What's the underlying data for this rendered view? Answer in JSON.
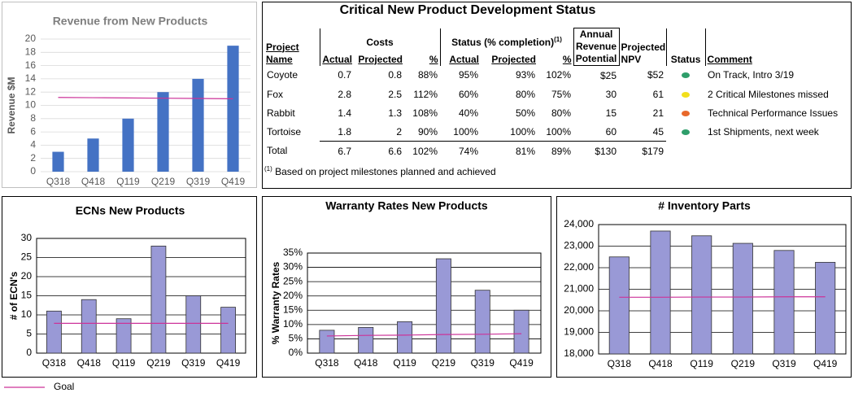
{
  "chart_data": [
    {
      "type": "bar",
      "title": "Revenue from New Products",
      "ylabel": "Revenue $M",
      "categories": [
        "Q318",
        "Q418",
        "Q119",
        "Q219",
        "Q319",
        "Q419"
      ],
      "values": [
        3,
        5,
        8,
        12,
        14,
        19
      ],
      "goal": [
        11.2,
        11.16,
        11.12,
        11.08,
        11.04,
        11.0
      ],
      "color": "#4472c4",
      "ylim": [
        0,
        20
      ],
      "yticks": [
        0,
        2,
        4,
        6,
        8,
        10,
        12,
        14,
        16,
        18,
        20
      ],
      "grid": true,
      "frame": false
    },
    {
      "type": "bar",
      "title": "ECNs New Products",
      "ylabel": "# of ECN's",
      "categories": [
        "Q318",
        "Q418",
        "Q119",
        "Q219",
        "Q319",
        "Q419"
      ],
      "values": [
        11,
        14,
        9,
        28,
        15,
        12
      ],
      "goal": [
        7.8,
        7.8,
        7.8,
        7.8,
        7.8,
        7.8
      ],
      "color": "#9999d6",
      "ylim": [
        0,
        30
      ],
      "yticks": [
        0,
        5,
        10,
        15,
        20,
        25,
        30
      ],
      "grid": true,
      "frame": true
    },
    {
      "type": "bar",
      "title": "Warranty Rates New Products",
      "ylabel": "% Warranty Rates",
      "categories": [
        "Q318",
        "Q418",
        "Q119",
        "Q219",
        "Q319",
        "Q419"
      ],
      "values": [
        8,
        9,
        11,
        33,
        22,
        15
      ],
      "goal": [
        6.0,
        6.2,
        6.3,
        6.5,
        6.6,
        6.8
      ],
      "color": "#9999d6",
      "ylim": [
        0,
        35
      ],
      "yticks": [
        {
          "value": 0,
          "label": "0%"
        },
        {
          "value": 5,
          "label": "5%"
        },
        {
          "value": 10,
          "label": "10%"
        },
        {
          "value": 15,
          "label": "15%"
        },
        {
          "value": 20,
          "label": "20%"
        },
        {
          "value": 25,
          "label": "25%"
        },
        {
          "value": 30,
          "label": "30%"
        },
        {
          "value": 35,
          "label": "35%"
        }
      ],
      "grid": true,
      "frame": true
    },
    {
      "type": "bar",
      "title": "# Inventory Parts",
      "categories": [
        "Q318",
        "Q418",
        "Q119",
        "Q219",
        "Q319",
        "Q419"
      ],
      "values": [
        22500,
        23700,
        23480,
        23130,
        22800,
        22250
      ],
      "goal": [
        20630,
        20630,
        20640,
        20640,
        20650,
        20650
      ],
      "color": "#9999d6",
      "ylim": [
        18000,
        24000
      ],
      "yticks": [
        {
          "value": 18000,
          "label": "18,000"
        },
        {
          "value": 19000,
          "label": "19,000"
        },
        {
          "value": 20000,
          "label": "20,000"
        },
        {
          "value": 21000,
          "label": "21,000"
        },
        {
          "value": 22000,
          "label": "22,000"
        },
        {
          "value": 23000,
          "label": "23,000"
        },
        {
          "value": 24000,
          "label": "24,000"
        }
      ],
      "grid": true,
      "frame": true
    }
  ],
  "legend": {
    "name": "Goal",
    "color": "#cc3399"
  },
  "table": {
    "title": "Critical New Product Development Status",
    "header": {
      "project": "Project Name",
      "costs": "Costs",
      "status_completion": "Status (% completion)",
      "status_note": "(1)",
      "annual": "Annual Revenue Potential",
      "npv": "Projected NPV",
      "status": "Status",
      "comment": "Comment",
      "sub": [
        "Actual",
        "Projected",
        "%",
        "Actual",
        "Projected",
        "%"
      ]
    },
    "rows": [
      [
        "Coyote",
        "0.7",
        "0.8",
        "88%",
        "95%",
        "93%",
        "102%",
        "$25",
        "$52",
        "On Track, Intro 3/19"
      ],
      [
        "Fox",
        "2.8",
        "2.5",
        "112%",
        "60%",
        "80%",
        "75%",
        "30",
        "61",
        "2 Critical Milestones missed"
      ],
      [
        "Rabbit",
        "1.4",
        "1.3",
        "108%",
        "40%",
        "50%",
        "80%",
        "15",
        "21",
        "Technical Performance Issues"
      ],
      [
        "Tortoise",
        "1.8",
        "2",
        "90%",
        "100%",
        "100%",
        "100%",
        "60",
        "45",
        "1st Shipments, next week"
      ]
    ],
    "status_colors": [
      "#2e9e6a",
      "#f2df1c",
      "#e8682a",
      "#2e9e6a"
    ],
    "total": [
      "Total",
      "6.7",
      "6.6",
      "102%",
      "74%",
      "81%",
      "89%",
      "$130",
      "$179"
    ],
    "footnote": {
      "marker": "(1)",
      "text": "Based on project milestones planned and achieved"
    }
  }
}
